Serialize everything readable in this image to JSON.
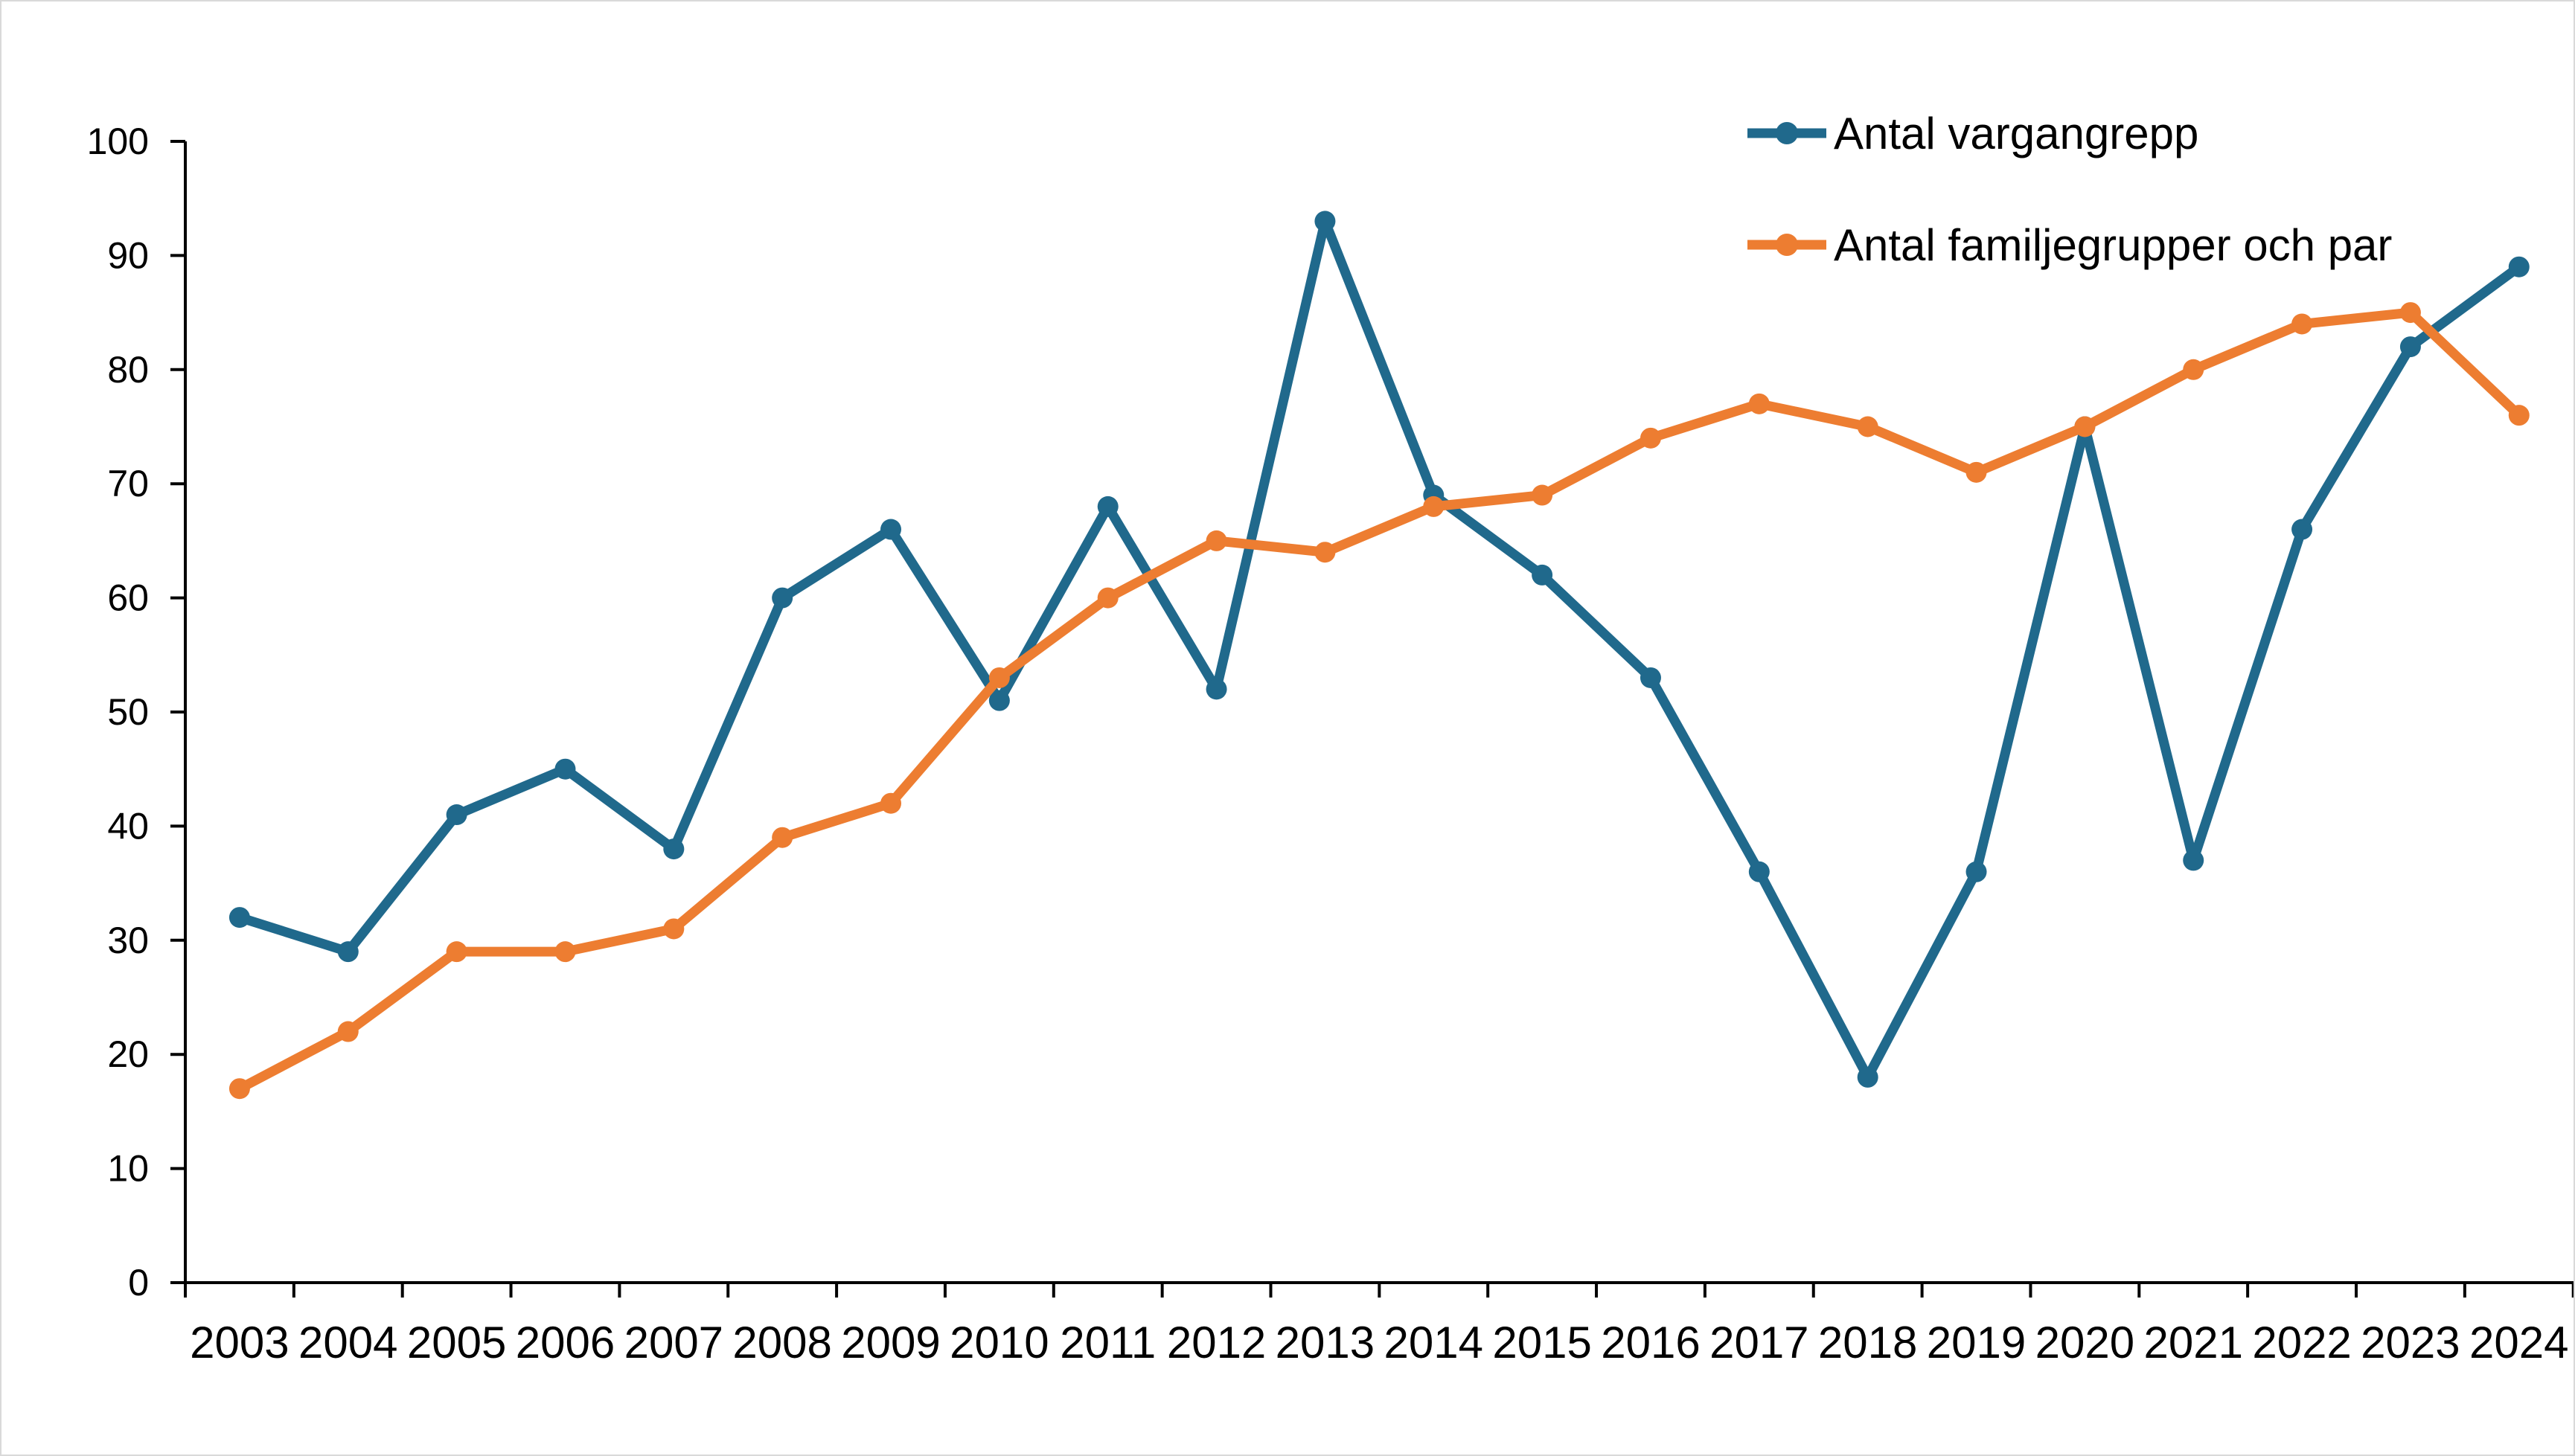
{
  "chart_data": {
    "type": "line",
    "title": "",
    "xlabel": "",
    "ylabel": "",
    "categories": [
      "2003",
      "2004",
      "2005",
      "2006",
      "2007",
      "2008",
      "2009",
      "2010",
      "2011",
      "2012",
      "2013",
      "2014",
      "2015",
      "2016",
      "2017",
      "2018",
      "2019",
      "2020",
      "2021",
      "2022",
      "2023",
      "2024"
    ],
    "series": [
      {
        "name": "Antal vargangrepp",
        "color": "#20698C",
        "values": [
          32,
          29,
          41,
          45,
          38,
          60,
          66,
          51,
          68,
          52,
          93,
          69,
          62,
          53,
          36,
          18,
          36,
          75,
          37,
          66,
          82,
          89
        ]
      },
      {
        "name": "Antal familjegrupper och par",
        "color": "#ED7D31",
        "values": [
          17,
          22,
          29,
          29,
          31,
          39,
          42,
          53,
          60,
          65,
          64,
          68,
          69,
          74,
          77,
          75,
          71,
          75,
          80,
          84,
          85,
          76
        ]
      }
    ],
    "ylim": [
      0,
      100
    ],
    "ytick_interval": 10,
    "ytick_labels": [
      "0",
      "10",
      "20",
      "30",
      "40",
      "50",
      "60",
      "70",
      "80",
      "90",
      "100"
    ],
    "grid": false,
    "legend_position": "top-right",
    "axis_color": "#000000",
    "background_color": "#ffffff",
    "marker": "circle"
  }
}
